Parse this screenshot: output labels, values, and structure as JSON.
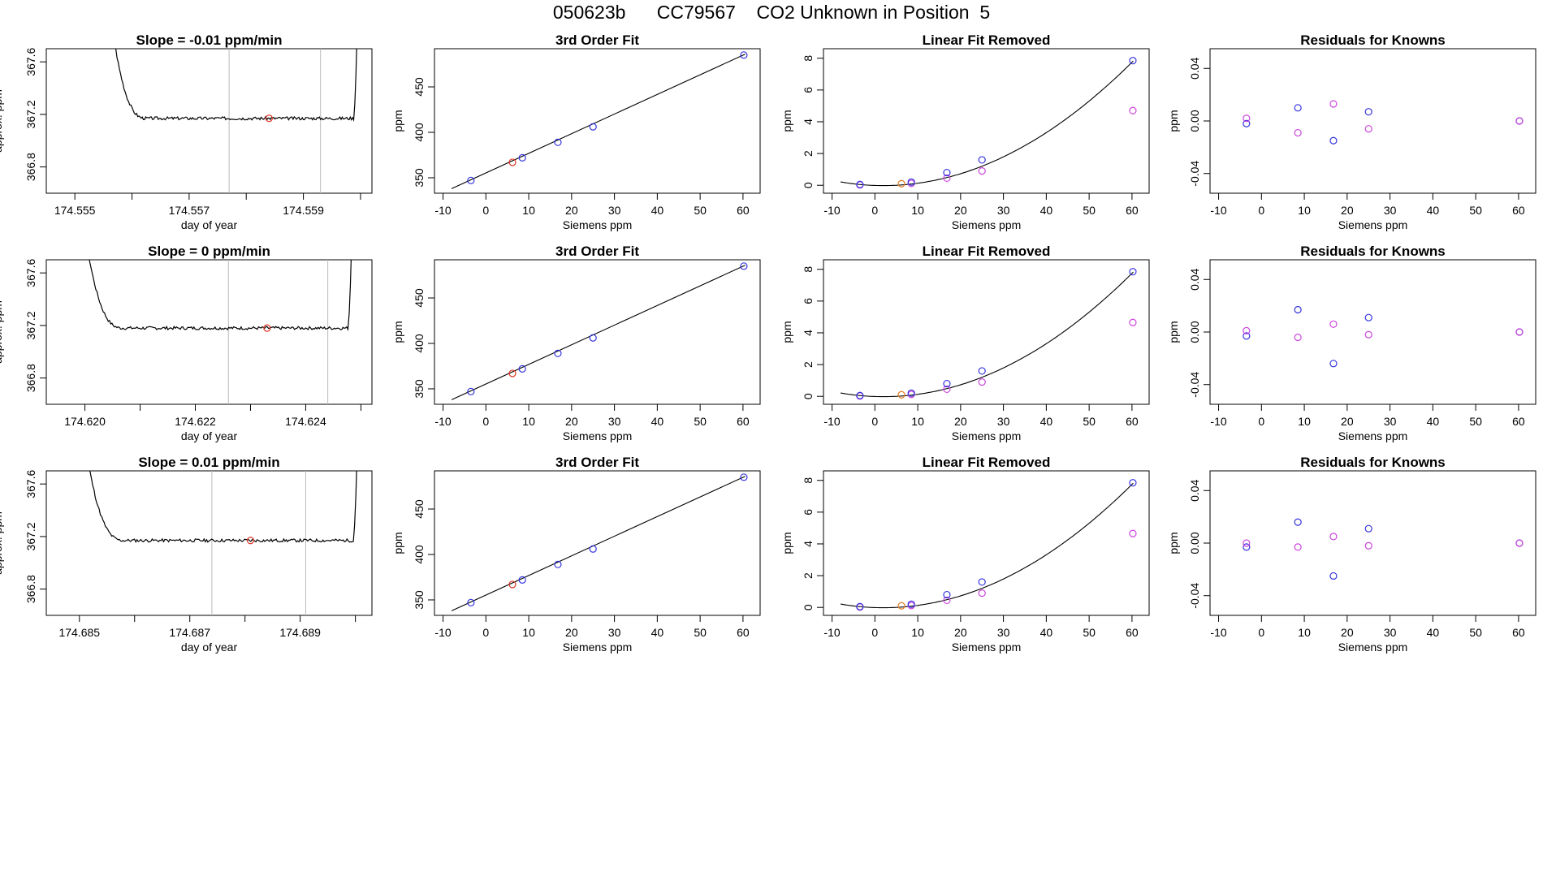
{
  "figure": {
    "title": "050623b      CC79567    CO2 Unknown in Position  5"
  },
  "colors": {
    "known": "#3333dd",
    "unknown": "#dd3322",
    "unknown_lfr": "#e07a1f",
    "residual_alt": "#cc44dd",
    "line": "#000000",
    "vline": "#bbbbbb"
  },
  "chart_data": [
    {
      "type": "line",
      "row": 0,
      "col": 0,
      "title": "Slope =  -0.01  ppm/min",
      "xlabel": "day of year",
      "ylabel": "approx. ppm",
      "xlim": [
        174.5545,
        174.5602
      ],
      "ylim": [
        366.6,
        367.7
      ],
      "xticks": [
        174.555,
        174.556,
        174.557,
        174.558,
        174.559,
        174.56
      ],
      "xtick_labels": [
        "174.555",
        "",
        "174.557",
        "",
        "174.559",
        ""
      ],
      "yticks": [
        366.8,
        367.2,
        367.6
      ],
      "ytick_labels": [
        "366.8",
        "367.2",
        "367.6"
      ],
      "trace": {
        "start": 174.5552,
        "end": 174.56,
        "level": 367.17,
        "noise": 0.012,
        "seed": 3
      },
      "vlines": [
        174.5577,
        174.5593
      ],
      "marker": {
        "x": 174.5584,
        "y": 367.17
      },
      "grid": false
    },
    {
      "type": "scatter",
      "row": 0,
      "col": 1,
      "title": "3rd Order Fit",
      "xlabel": "Siemens ppm",
      "ylabel": "ppm",
      "xlim": [
        -12,
        64
      ],
      "ylim": [
        333,
        492
      ],
      "xticks": [
        -10,
        0,
        10,
        20,
        30,
        40,
        50,
        60
      ],
      "xtick_labels": [
        "-10",
        "0",
        "10",
        "20",
        "30",
        "40",
        "50",
        "60"
      ],
      "yticks": [
        350,
        400,
        450
      ],
      "ytick_labels": [
        "350",
        "400",
        "450"
      ],
      "fit_line": {
        "x": [
          -8,
          60.5
        ],
        "y": [
          338,
          486
        ]
      },
      "known": {
        "x": [
          -3.5,
          8.5,
          16.8,
          25,
          60.2
        ],
        "y": [
          347,
          372,
          389,
          406,
          485
        ]
      },
      "unknown": {
        "x": [
          6.2
        ],
        "y": [
          367
        ]
      },
      "grid": false
    },
    {
      "type": "scatter",
      "row": 0,
      "col": 2,
      "title": "Linear Fit Removed",
      "xlabel": "Siemens ppm",
      "ylabel": "ppm",
      "xlim": [
        -12,
        64
      ],
      "ylim": [
        -0.5,
        8.6
      ],
      "xticks": [
        -10,
        0,
        10,
        20,
        30,
        40,
        50,
        60
      ],
      "xtick_labels": [
        "-10",
        "0",
        "10",
        "20",
        "30",
        "40",
        "50",
        "60"
      ],
      "yticks": [
        0,
        2,
        4,
        6,
        8
      ],
      "ytick_labels": [
        "0",
        "2",
        "4",
        "6",
        "8"
      ],
      "curve": {
        "x0": -8,
        "x1": 60.3,
        "peak": 7.85
      },
      "known": {
        "x": [
          -3.5,
          8.5,
          16.8,
          25,
          60.2
        ],
        "y": [
          0.05,
          0.2,
          0.8,
          1.6,
          7.85
        ]
      },
      "known_alt": {
        "x": [
          -3.5,
          8.5,
          16.8,
          25,
          60.2
        ],
        "y": [
          0.02,
          0.12,
          0.45,
          0.9,
          4.7
        ]
      },
      "unknown": {
        "x": [
          6.2
        ],
        "y": [
          0.1
        ]
      },
      "grid": false
    },
    {
      "type": "scatter",
      "row": 0,
      "col": 3,
      "title": "Residuals for Knowns",
      "xlabel": "Siemens ppm",
      "ylabel": "ppm",
      "xlim": [
        -12,
        64
      ],
      "ylim": [
        -0.055,
        0.055
      ],
      "xticks": [
        -10,
        0,
        10,
        20,
        30,
        40,
        50,
        60
      ],
      "xtick_labels": [
        "-10",
        "0",
        "10",
        "20",
        "30",
        "40",
        "50",
        "60"
      ],
      "yticks": [
        -0.04,
        0.0,
        0.04
      ],
      "ytick_labels": [
        "-0.04",
        "0.00",
        "0.04"
      ],
      "series": [
        {
          "x": [
            -3.5,
            8.5,
            16.8,
            25,
            60.2
          ],
          "y": [
            -0.002,
            0.01,
            -0.015,
            0.007,
            0.0
          ],
          "color": "known"
        },
        {
          "x": [
            -3.5,
            8.5,
            16.8,
            25,
            60.2
          ],
          "y": [
            0.002,
            -0.009,
            0.013,
            -0.006,
            0.0
          ],
          "color": "residual_alt"
        }
      ],
      "grid": false
    },
    {
      "type": "line",
      "row": 1,
      "col": 0,
      "title": "Slope =  0  ppm/min",
      "xlabel": "day of year",
      "ylabel": "approx. ppm",
      "xlim": [
        174.6193,
        174.6252
      ],
      "ylim": [
        366.6,
        367.7
      ],
      "xticks": [
        174.62,
        174.621,
        174.622,
        174.623,
        174.624,
        174.625
      ],
      "xtick_labels": [
        "174.620",
        "",
        "174.622",
        "",
        "174.624",
        ""
      ],
      "yticks": [
        366.8,
        367.2,
        367.6
      ],
      "ytick_labels": [
        "366.8",
        "367.2",
        "367.6"
      ],
      "trace": {
        "start": 174.6195,
        "end": 174.6249,
        "level": 367.18,
        "noise": 0.012,
        "seed": 7
      },
      "vlines": [
        174.6226,
        174.6244
      ],
      "marker": {
        "x": 174.6233,
        "y": 367.18
      },
      "grid": false
    },
    {
      "type": "scatter",
      "row": 1,
      "col": 1,
      "title": "3rd Order Fit",
      "xlabel": "Siemens ppm",
      "ylabel": "ppm",
      "xlim": [
        -12,
        64
      ],
      "ylim": [
        333,
        492
      ],
      "xticks": [
        -10,
        0,
        10,
        20,
        30,
        40,
        50,
        60
      ],
      "xtick_labels": [
        "-10",
        "0",
        "10",
        "20",
        "30",
        "40",
        "50",
        "60"
      ],
      "yticks": [
        350,
        400,
        450
      ],
      "ytick_labels": [
        "350",
        "400",
        "450"
      ],
      "fit_line": {
        "x": [
          -8,
          60.5
        ],
        "y": [
          338,
          486
        ]
      },
      "known": {
        "x": [
          -3.5,
          8.5,
          16.8,
          25,
          60.2
        ],
        "y": [
          347,
          372,
          389,
          406,
          485
        ]
      },
      "unknown": {
        "x": [
          6.2
        ],
        "y": [
          367
        ]
      },
      "grid": false
    },
    {
      "type": "scatter",
      "row": 1,
      "col": 2,
      "title": "Linear Fit Removed",
      "xlabel": "Siemens ppm",
      "ylabel": "ppm",
      "xlim": [
        -12,
        64
      ],
      "ylim": [
        -0.5,
        8.6
      ],
      "xticks": [
        -10,
        0,
        10,
        20,
        30,
        40,
        50,
        60
      ],
      "xtick_labels": [
        "-10",
        "0",
        "10",
        "20",
        "30",
        "40",
        "50",
        "60"
      ],
      "yticks": [
        0,
        2,
        4,
        6,
        8
      ],
      "ytick_labels": [
        "0",
        "2",
        "4",
        "6",
        "8"
      ],
      "curve": {
        "x0": -8,
        "x1": 60.3,
        "peak": 7.85
      },
      "known": {
        "x": [
          -3.5,
          8.5,
          16.8,
          25,
          60.2
        ],
        "y": [
          0.05,
          0.2,
          0.8,
          1.6,
          7.85
        ]
      },
      "known_alt": {
        "x": [
          -3.5,
          8.5,
          16.8,
          25,
          60.2
        ],
        "y": [
          0.02,
          0.12,
          0.45,
          0.9,
          4.65
        ]
      },
      "unknown": {
        "x": [
          6.2
        ],
        "y": [
          0.1
        ]
      },
      "grid": false
    },
    {
      "type": "scatter",
      "row": 1,
      "col": 3,
      "title": "Residuals for Knowns",
      "xlabel": "Siemens ppm",
      "ylabel": "ppm",
      "xlim": [
        -12,
        64
      ],
      "ylim": [
        -0.055,
        0.055
      ],
      "xticks": [
        -10,
        0,
        10,
        20,
        30,
        40,
        50,
        60
      ],
      "xtick_labels": [
        "-10",
        "0",
        "10",
        "20",
        "30",
        "40",
        "50",
        "60"
      ],
      "yticks": [
        -0.04,
        0.0,
        0.04
      ],
      "ytick_labels": [
        "-0.04",
        "0.00",
        "0.04"
      ],
      "series": [
        {
          "x": [
            -3.5,
            8.5,
            16.8,
            25,
            60.2
          ],
          "y": [
            -0.003,
            0.017,
            -0.024,
            0.011,
            0.0
          ],
          "color": "known"
        },
        {
          "x": [
            -3.5,
            8.5,
            16.8,
            25,
            60.2
          ],
          "y": [
            0.001,
            -0.004,
            0.006,
            -0.002,
            0.0
          ],
          "color": "residual_alt"
        }
      ],
      "grid": false
    },
    {
      "type": "line",
      "row": 2,
      "col": 0,
      "title": "Slope =  0.01  ppm/min",
      "xlabel": "day of year",
      "ylabel": "approx. ppm",
      "xlim": [
        174.6844,
        174.6903
      ],
      "ylim": [
        366.6,
        367.7
      ],
      "xticks": [
        174.685,
        174.686,
        174.687,
        174.688,
        174.689,
        174.69
      ],
      "xtick_labels": [
        "174.685",
        "",
        "174.687",
        "",
        "174.689",
        ""
      ],
      "yticks": [
        366.8,
        367.2,
        367.6
      ],
      "ytick_labels": [
        "366.8",
        "367.2",
        "367.6"
      ],
      "trace": {
        "start": 174.6846,
        "end": 174.6901,
        "level": 367.17,
        "noise": 0.012,
        "seed": 11
      },
      "vlines": [
        174.6874,
        174.6891
      ],
      "marker": {
        "x": 174.6881,
        "y": 367.17
      },
      "grid": false
    },
    {
      "type": "scatter",
      "row": 2,
      "col": 1,
      "title": "3rd Order Fit",
      "xlabel": "Siemens ppm",
      "ylabel": "ppm",
      "xlim": [
        -12,
        64
      ],
      "ylim": [
        333,
        492
      ],
      "xticks": [
        -10,
        0,
        10,
        20,
        30,
        40,
        50,
        60
      ],
      "xtick_labels": [
        "-10",
        "0",
        "10",
        "20",
        "30",
        "40",
        "50",
        "60"
      ],
      "yticks": [
        350,
        400,
        450
      ],
      "ytick_labels": [
        "350",
        "400",
        "450"
      ],
      "fit_line": {
        "x": [
          -8,
          60.5
        ],
        "y": [
          338,
          486
        ]
      },
      "known": {
        "x": [
          -3.5,
          8.5,
          16.8,
          25,
          60.2
        ],
        "y": [
          347,
          372,
          389,
          406,
          485
        ]
      },
      "unknown": {
        "x": [
          6.2
        ],
        "y": [
          367
        ]
      },
      "grid": false
    },
    {
      "type": "scatter",
      "row": 2,
      "col": 2,
      "title": "Linear Fit Removed",
      "xlabel": "Siemens ppm",
      "ylabel": "ppm",
      "xlim": [
        -12,
        64
      ],
      "ylim": [
        -0.5,
        8.6
      ],
      "xticks": [
        -10,
        0,
        10,
        20,
        30,
        40,
        50,
        60
      ],
      "xtick_labels": [
        "-10",
        "0",
        "10",
        "20",
        "30",
        "40",
        "50",
        "60"
      ],
      "yticks": [
        0,
        2,
        4,
        6,
        8
      ],
      "ytick_labels": [
        "0",
        "2",
        "4",
        "6",
        "8"
      ],
      "curve": {
        "x0": -8,
        "x1": 60.3,
        "peak": 7.85
      },
      "known": {
        "x": [
          -3.5,
          8.5,
          16.8,
          25,
          60.2
        ],
        "y": [
          0.05,
          0.2,
          0.8,
          1.6,
          7.85
        ]
      },
      "known_alt": {
        "x": [
          -3.5,
          8.5,
          16.8,
          25,
          60.2
        ],
        "y": [
          0.02,
          0.12,
          0.45,
          0.9,
          4.65
        ]
      },
      "unknown": {
        "x": [
          6.2
        ],
        "y": [
          0.1
        ]
      },
      "grid": false
    },
    {
      "type": "scatter",
      "row": 2,
      "col": 3,
      "title": "Residuals for Knowns",
      "xlabel": "Siemens ppm",
      "ylabel": "ppm",
      "xlim": [
        -12,
        64
      ],
      "ylim": [
        -0.055,
        0.055
      ],
      "xticks": [
        -10,
        0,
        10,
        20,
        30,
        40,
        50,
        60
      ],
      "xtick_labels": [
        "-10",
        "0",
        "10",
        "20",
        "30",
        "40",
        "50",
        "60"
      ],
      "yticks": [
        -0.04,
        0.0,
        0.04
      ],
      "ytick_labels": [
        "-0.04",
        "0.00",
        "0.04"
      ],
      "series": [
        {
          "x": [
            -3.5,
            8.5,
            16.8,
            25,
            60.2
          ],
          "y": [
            -0.003,
            0.016,
            -0.025,
            0.011,
            0.0
          ],
          "color": "known"
        },
        {
          "x": [
            -3.5,
            8.5,
            16.8,
            25,
            60.2
          ],
          "y": [
            0.0,
            -0.003,
            0.005,
            -0.002,
            0.0
          ],
          "color": "residual_alt"
        }
      ],
      "grid": false
    }
  ]
}
